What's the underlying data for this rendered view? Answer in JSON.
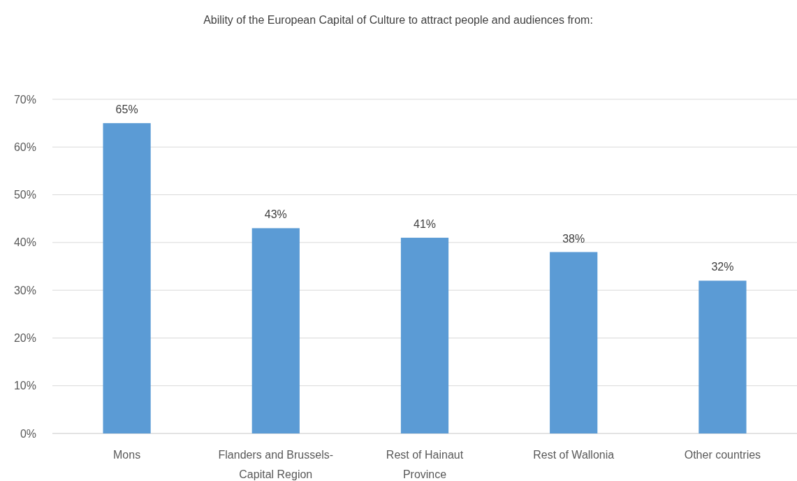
{
  "chart_data": {
    "type": "bar",
    "title": "Ability of the European Capital of Culture to attract people and audiences from:",
    "categories": [
      "Mons",
      "Flanders and Brussels-Capital Region",
      "Rest of Hainaut Province",
      "Rest of Wallonia",
      "Other countries"
    ],
    "values": [
      65,
      43,
      41,
      38,
      32
    ],
    "color": "#5b9bd5",
    "ylim": [
      0,
      70
    ],
    "yticks": [
      {
        "value": 0,
        "label": "0%"
      },
      {
        "value": 10,
        "label": "10%"
      },
      {
        "value": 20,
        "label": "20%"
      },
      {
        "value": 30,
        "label": "30%"
      },
      {
        "value": 40,
        "label": "40%"
      },
      {
        "value": 50,
        "label": "50%"
      },
      {
        "value": 60,
        "label": "60%"
      },
      {
        "value": 70,
        "label": "70%"
      }
    ],
    "grid": "y",
    "value_labels": [
      "65%",
      "43%",
      "41%",
      "38%",
      "32%"
    ]
  }
}
